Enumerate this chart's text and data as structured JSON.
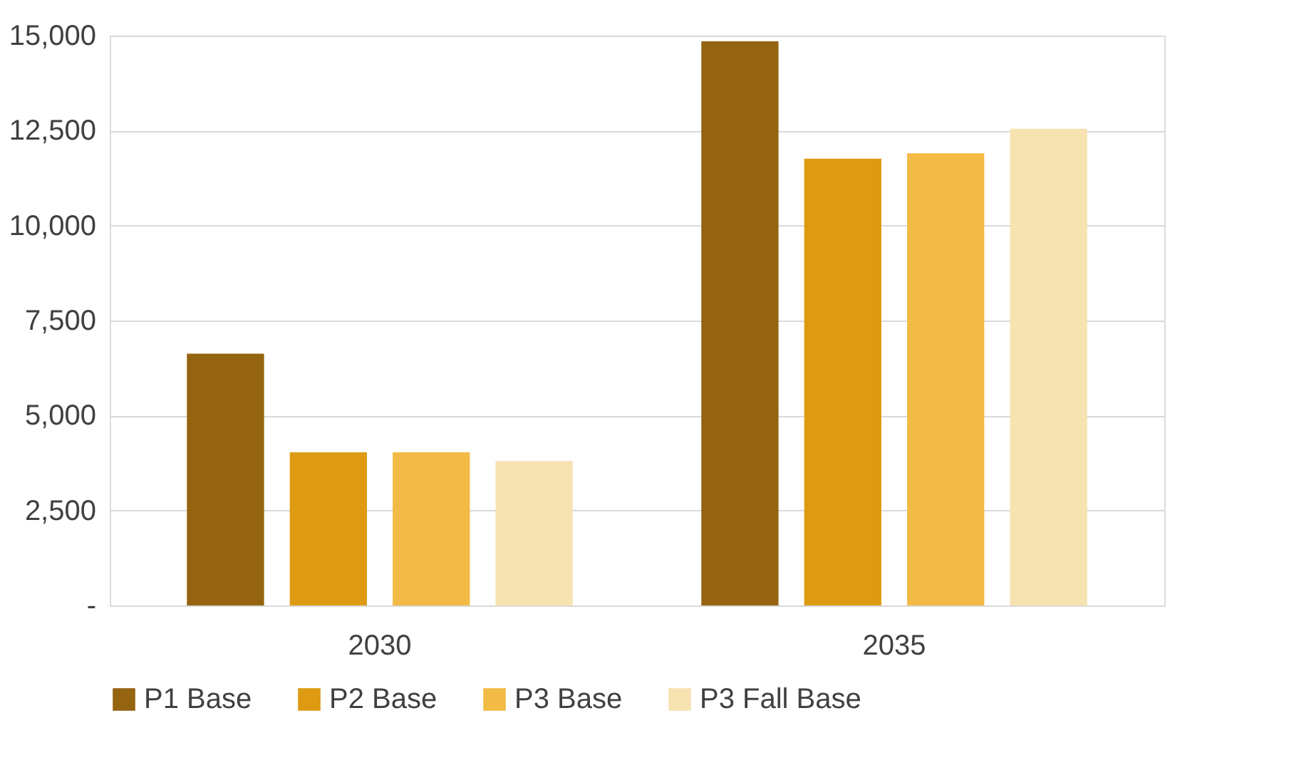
{
  "chart_data": {
    "type": "bar",
    "categories": [
      "2030",
      "2035"
    ],
    "series": [
      {
        "name": "P1 Base",
        "color": "#956410",
        "values": [
          6630,
          14850
        ]
      },
      {
        "name": "P2 Base",
        "color": "#dd9a12",
        "values": [
          4030,
          11760
        ]
      },
      {
        "name": "P3 Base",
        "color": "#f2bb45",
        "values": [
          4030,
          11900
        ]
      },
      {
        "name": "P3 Fall Base",
        "color": "#f7e2b2",
        "values": [
          3800,
          12550
        ]
      }
    ],
    "ylim": [
      0,
      15000
    ],
    "yticks": [
      {
        "value": 0,
        "label": "-"
      },
      {
        "value": 2500,
        "label": "2,500"
      },
      {
        "value": 5000,
        "label": "5,000"
      },
      {
        "value": 7500,
        "label": "7,500"
      },
      {
        "value": 10000,
        "label": "10,000"
      },
      {
        "value": 12500,
        "label": "12,500"
      },
      {
        "value": 15000,
        "label": "15,000"
      }
    ],
    "grid": "y",
    "legend": "bottom"
  }
}
